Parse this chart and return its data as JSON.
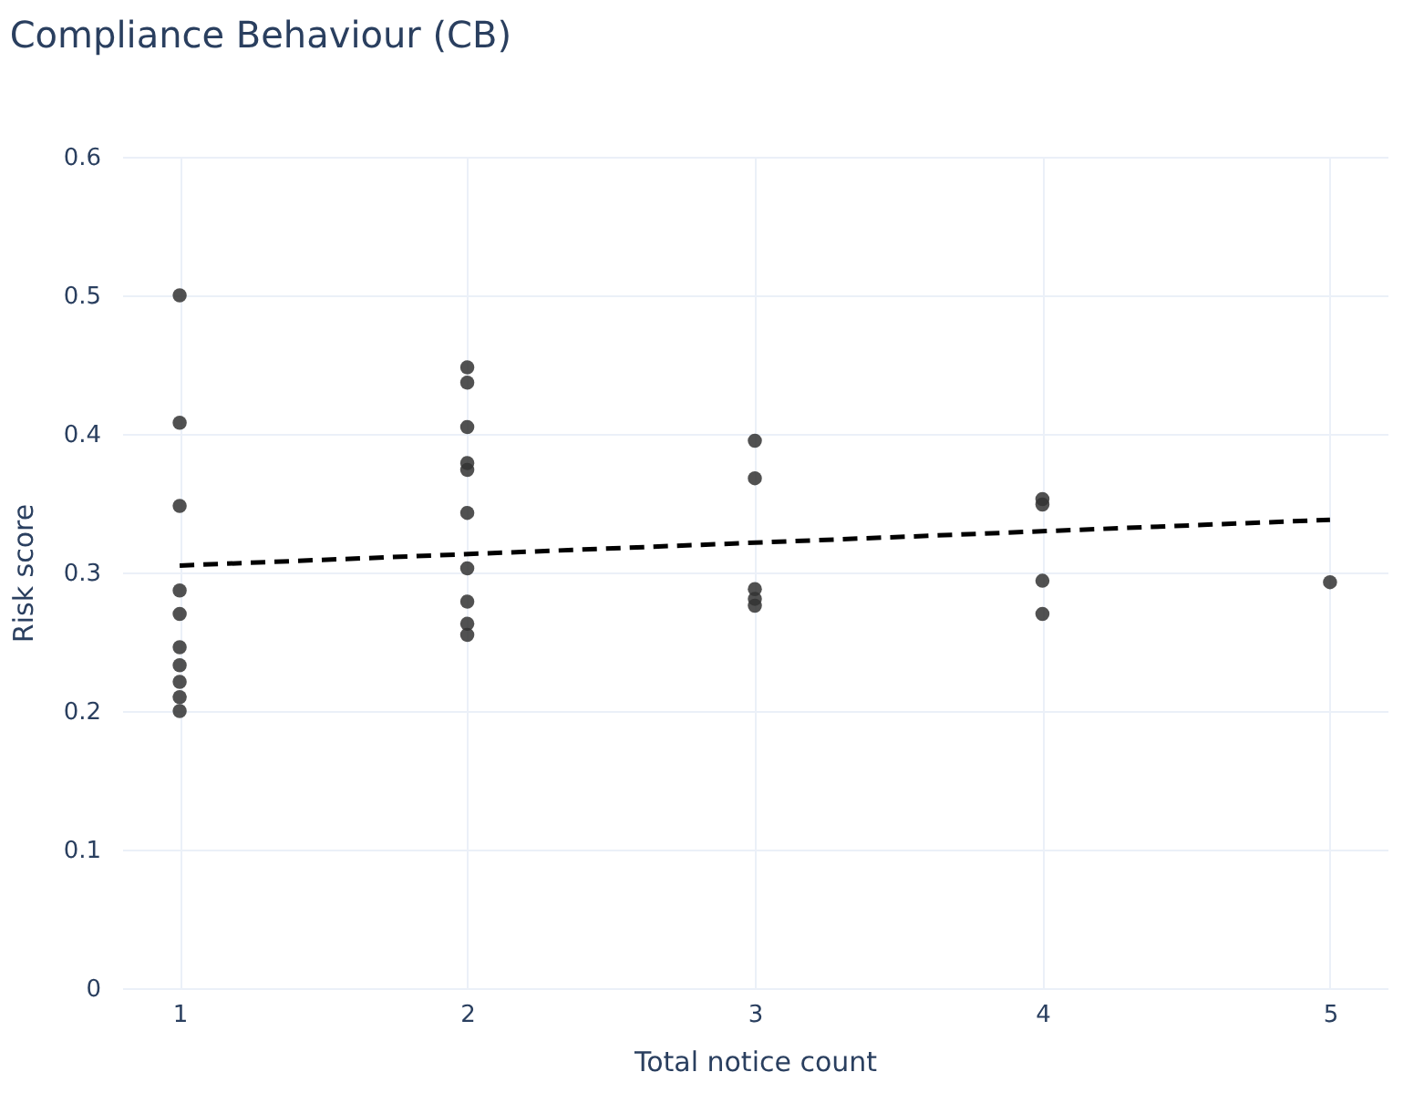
{
  "chart_data": {
    "type": "scatter",
    "title": "Compliance Behaviour (CB)",
    "xlabel": "Total notice count",
    "ylabel": "Risk score",
    "xlim": [
      0.8,
      5.2
    ],
    "xticks": [
      1,
      2,
      3,
      4,
      5
    ],
    "ylim": [
      0,
      0.6
    ],
    "yticks": [
      0,
      0.1,
      0.2,
      0.3,
      0.4,
      0.5,
      0.6
    ],
    "grid": true,
    "series": [
      {
        "color": "#333333",
        "marker": "circle",
        "x": [
          1,
          1,
          1,
          1,
          1,
          1,
          1,
          1,
          1,
          1,
          2,
          2,
          2,
          2,
          2,
          2,
          2,
          2,
          2,
          2,
          3,
          3,
          3,
          3,
          3,
          4,
          4,
          4,
          4,
          5
        ],
        "values": [
          0.5,
          0.408,
          0.348,
          0.287,
          0.27,
          0.246,
          0.233,
          0.221,
          0.21,
          0.2,
          0.448,
          0.437,
          0.405,
          0.379,
          0.374,
          0.343,
          0.303,
          0.279,
          0.263,
          0.255,
          0.395,
          0.368,
          0.288,
          0.281,
          0.276,
          0.353,
          0.349,
          0.294,
          0.27,
          0.293
        ]
      },
      {
        "type": "line",
        "color": "#000000",
        "line_style": "dashed",
        "marker": "none",
        "x": [
          1,
          5
        ],
        "values": [
          0.305,
          0.338
        ]
      }
    ]
  }
}
